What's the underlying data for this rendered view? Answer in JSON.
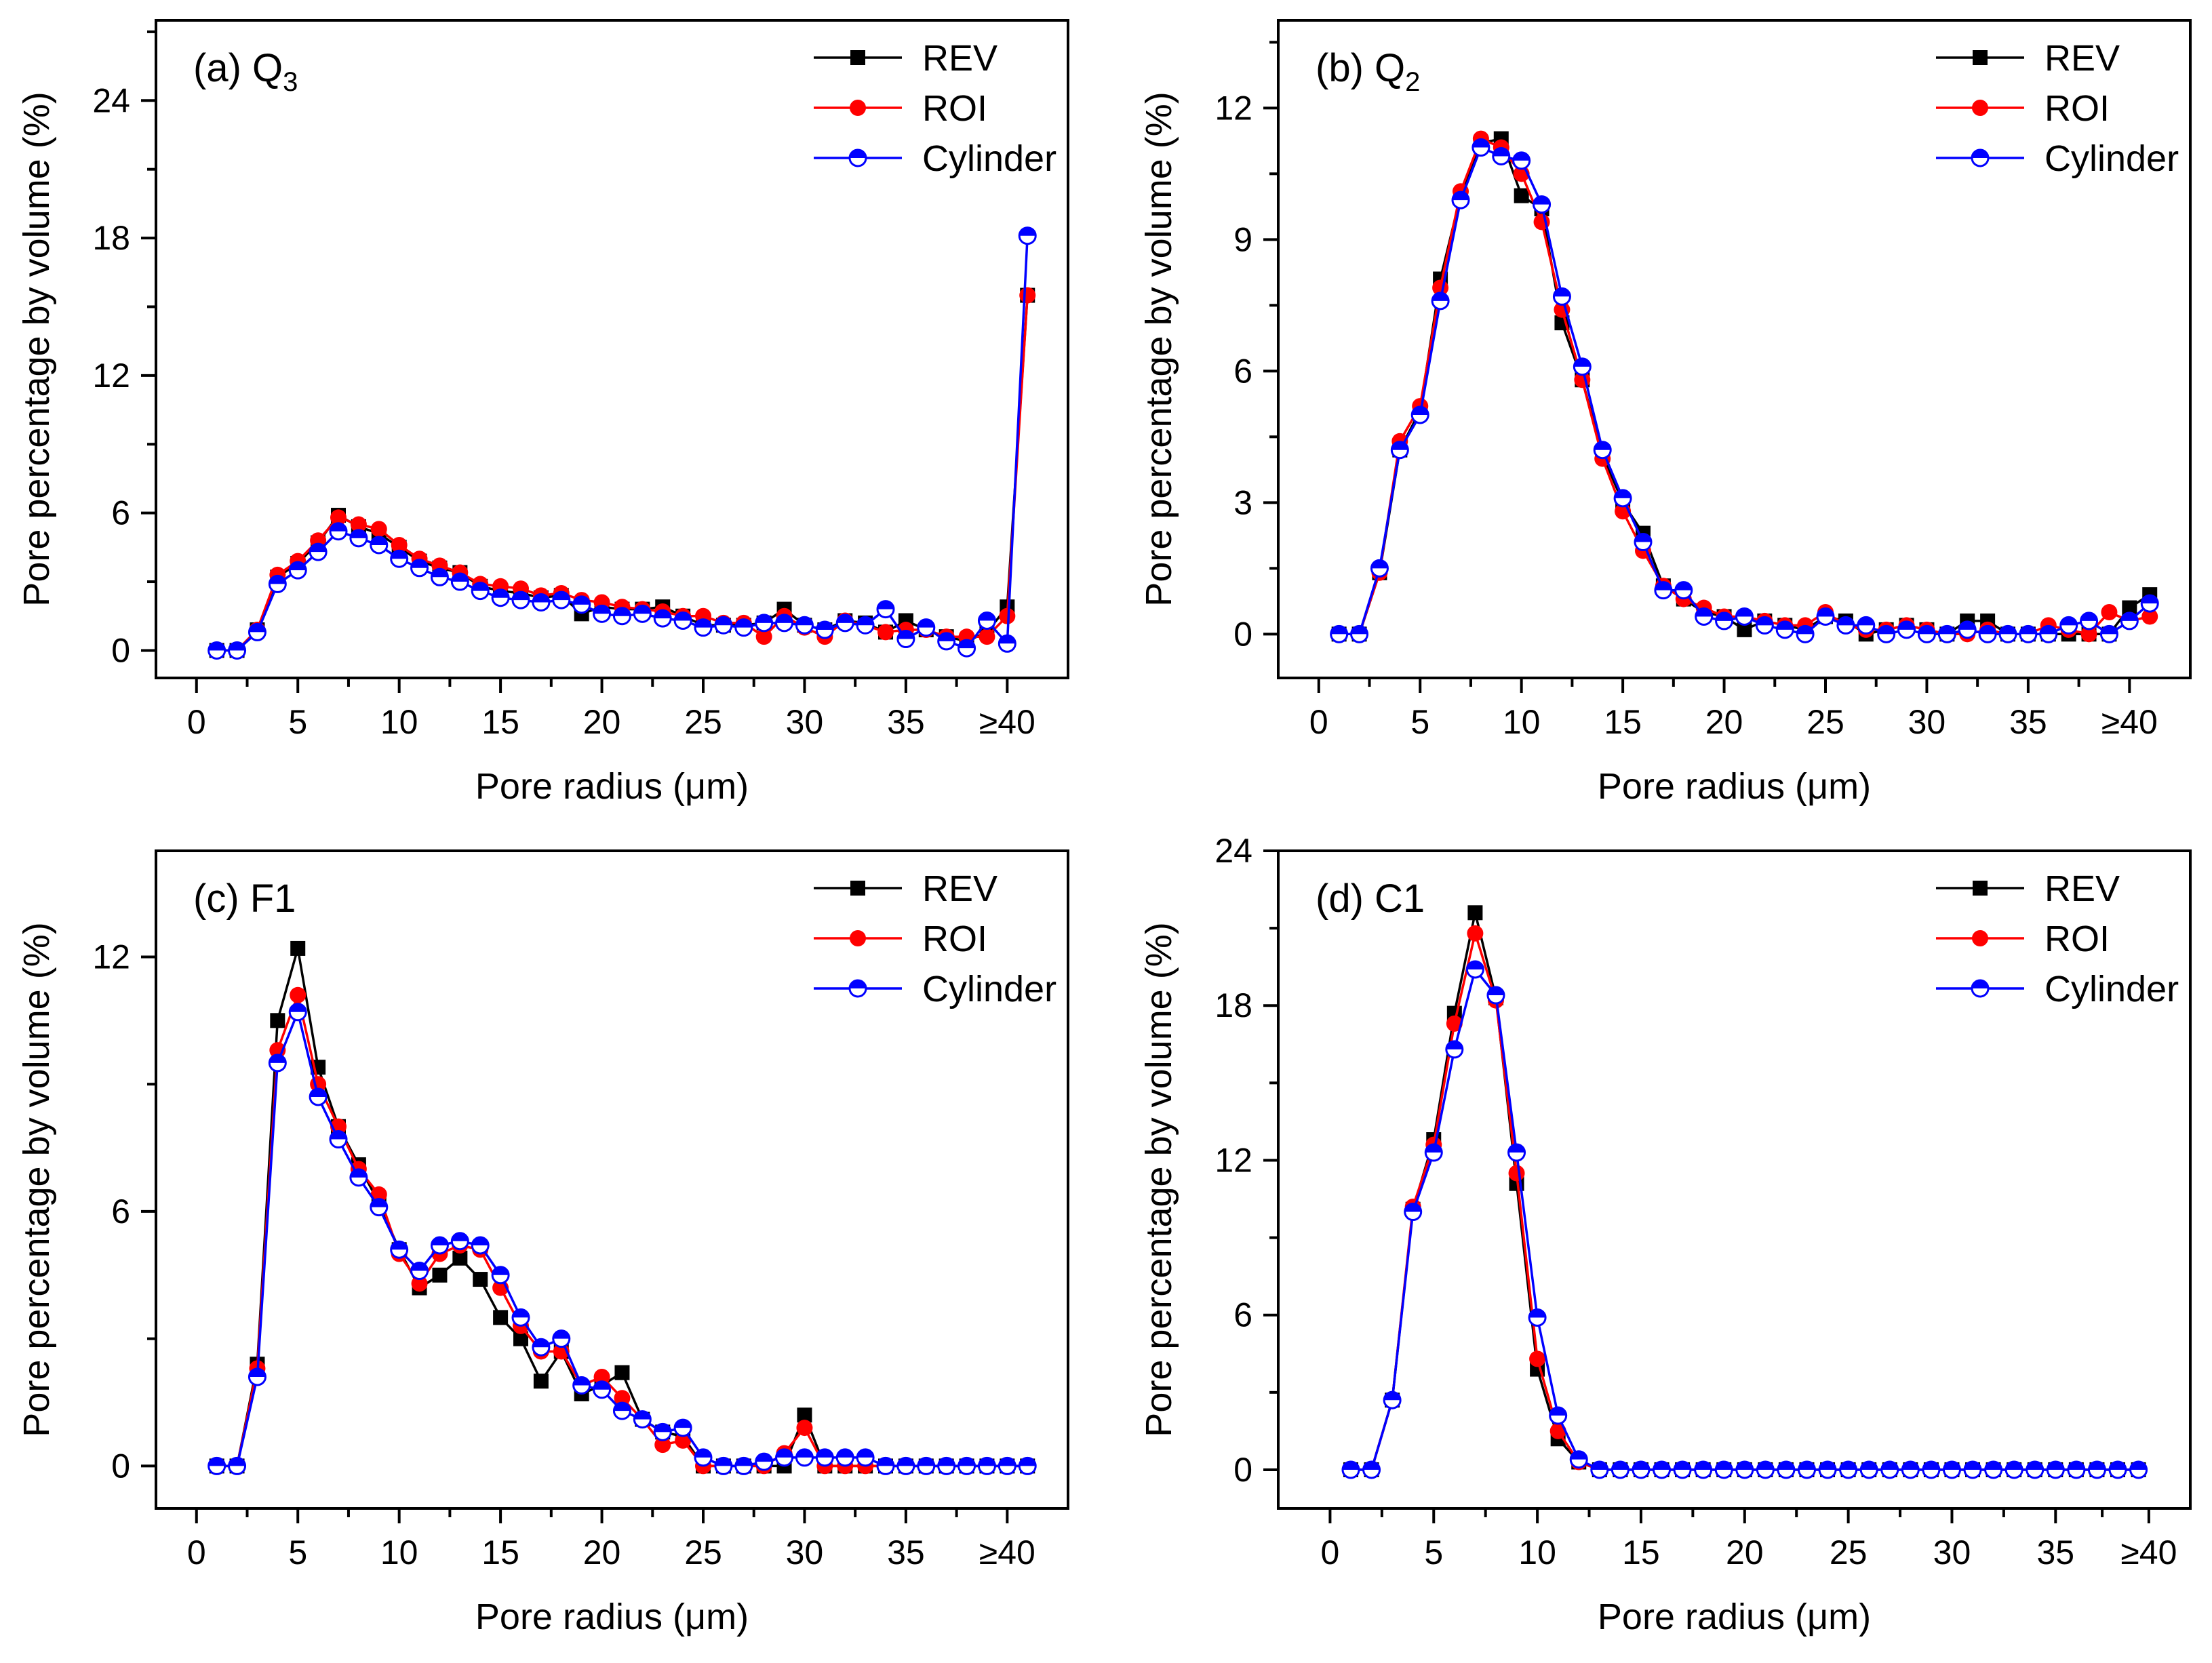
{
  "figure": {
    "colors": {
      "REV": "#000000",
      "ROI": "#ff0000",
      "Cylinder": "#0000ff"
    }
  },
  "chart_data": [
    {
      "type": "line",
      "panel_label": "(a) Q",
      "panel_label_sub": "3",
      "xlabel": "Pore radius (μm)",
      "ylabel": "Pore percentage by volume (%)",
      "xlim": [
        -2,
        43
      ],
      "ylim": [
        -1.2,
        27.5
      ],
      "x_ticks": [
        0,
        5,
        10,
        15,
        20,
        25,
        30,
        35,
        40
      ],
      "x_tick_labels": [
        "0",
        "5",
        "10",
        "15",
        "20",
        "25",
        "30",
        "35",
        "≥40"
      ],
      "y_ticks": [
        0,
        6,
        12,
        18,
        24
      ],
      "y_tick_labels": [
        "0",
        "6",
        "12",
        "18",
        "24"
      ],
      "legend_position": "top-right",
      "x": [
        1,
        2,
        3,
        4,
        5,
        6,
        7,
        8,
        9,
        10,
        11,
        12,
        13,
        14,
        15,
        16,
        17,
        18,
        19,
        20,
        21,
        22,
        23,
        24,
        25,
        26,
        27,
        28,
        29,
        30,
        31,
        32,
        33,
        34,
        35,
        36,
        37,
        38,
        39,
        40,
        41
      ],
      "series": [
        {
          "name": "REV",
          "marker": "square",
          "values": [
            0,
            0,
            0.9,
            3.2,
            3.8,
            4.7,
            5.9,
            5.4,
            5.1,
            4.5,
            3.9,
            3.6,
            3.4,
            2.8,
            2.6,
            2.5,
            2.3,
            2.4,
            1.6,
            1.9,
            1.8,
            1.8,
            1.9,
            1.5,
            1.1,
            1.1,
            1.1,
            1.2,
            1.8,
            1.1,
            0.9,
            1.3,
            1.2,
            0.8,
            1.3,
            0.9,
            0.6,
            0.4,
            0.8,
            1.9,
            15.5
          ]
        },
        {
          "name": "ROI",
          "marker": "circle",
          "values": [
            0,
            0,
            0.9,
            3.3,
            3.9,
            4.8,
            5.8,
            5.5,
            5.3,
            4.6,
            4.0,
            3.7,
            3.4,
            2.9,
            2.8,
            2.7,
            2.4,
            2.5,
            2.2,
            2.1,
            1.9,
            1.8,
            1.7,
            1.5,
            1.5,
            1.2,
            1.2,
            0.6,
            1.5,
            1.0,
            0.6,
            1.3,
            1.1,
            0.8,
            0.9,
            0.9,
            0.6,
            0.6,
            0.6,
            1.5,
            15.5
          ]
        },
        {
          "name": "Cylinder",
          "marker": "half-circle",
          "values": [
            0,
            0,
            0.8,
            2.9,
            3.5,
            4.3,
            5.2,
            4.9,
            4.6,
            4.0,
            3.6,
            3.2,
            3.0,
            2.6,
            2.3,
            2.2,
            2.1,
            2.2,
            2.0,
            1.6,
            1.5,
            1.6,
            1.4,
            1.3,
            1.0,
            1.1,
            1.0,
            1.2,
            1.2,
            1.1,
            0.9,
            1.2,
            1.1,
            1.8,
            0.5,
            1.0,
            0.4,
            0.1,
            1.3,
            0.3,
            18.1
          ]
        }
      ]
    },
    {
      "type": "line",
      "panel_label": "(b) Q",
      "panel_label_sub": "2",
      "xlabel": "Pore radius (μm)",
      "ylabel": "Pore percentage by volume (%)",
      "xlim": [
        -2,
        43
      ],
      "ylim": [
        -1.0,
        14.0
      ],
      "x_ticks": [
        0,
        5,
        10,
        15,
        20,
        25,
        30,
        35,
        40
      ],
      "x_tick_labels": [
        "0",
        "5",
        "10",
        "15",
        "20",
        "25",
        "30",
        "35",
        "≥40"
      ],
      "y_ticks": [
        0,
        3,
        6,
        9,
        12
      ],
      "y_tick_labels": [
        "0",
        "3",
        "6",
        "9",
        "12"
      ],
      "legend_position": "top-right",
      "x": [
        1,
        2,
        3,
        4,
        5,
        6,
        7,
        8,
        9,
        10,
        11,
        12,
        13,
        14,
        15,
        16,
        17,
        18,
        19,
        20,
        21,
        22,
        23,
        24,
        25,
        26,
        27,
        28,
        29,
        30,
        31,
        32,
        33,
        34,
        35,
        36,
        37,
        38,
        39,
        40,
        41
      ],
      "series": [
        {
          "name": "REV",
          "marker": "square",
          "values": [
            0,
            0,
            1.4,
            4.2,
            5.1,
            8.1,
            10.0,
            11.2,
            11.3,
            10.0,
            9.7,
            7.1,
            5.8,
            4.1,
            3.0,
            2.3,
            1.1,
            0.8,
            0.5,
            0.4,
            0.1,
            0.3,
            0.2,
            0.1,
            0.4,
            0.3,
            0.0,
            0.1,
            0.2,
            0.1,
            0.0,
            0.3,
            0.3,
            0.0,
            0.0,
            0.0,
            0.0,
            0.0,
            0.0,
            0.6,
            0.9
          ]
        },
        {
          "name": "ROI",
          "marker": "circle",
          "values": [
            0,
            0,
            1.4,
            4.4,
            5.2,
            7.9,
            10.1,
            11.3,
            11.1,
            10.5,
            9.4,
            7.4,
            5.8,
            4.0,
            2.8,
            1.9,
            1.1,
            0.8,
            0.6,
            0.4,
            0.4,
            0.3,
            0.2,
            0.2,
            0.5,
            0.2,
            0.1,
            0.1,
            0.2,
            0.1,
            0.0,
            0.0,
            0.1,
            0.0,
            0.0,
            0.2,
            0.1,
            0.0,
            0.5,
            0.3,
            0.4
          ]
        },
        {
          "name": "Cylinder",
          "marker": "half-circle",
          "values": [
            0,
            0,
            1.5,
            4.2,
            5.0,
            7.6,
            9.9,
            11.1,
            10.9,
            10.8,
            9.8,
            7.7,
            6.1,
            4.2,
            3.1,
            2.1,
            1.0,
            1.0,
            0.4,
            0.3,
            0.4,
            0.2,
            0.1,
            0.0,
            0.4,
            0.2,
            0.2,
            0.0,
            0.1,
            0.0,
            0.0,
            0.1,
            0.0,
            0.0,
            0.0,
            0.0,
            0.2,
            0.3,
            0.0,
            0.3,
            0.7
          ]
        }
      ]
    },
    {
      "type": "line",
      "panel_label": "(c) F1",
      "panel_label_sub": "",
      "xlabel": "Pore radius (μm)",
      "ylabel": "Pore percentage by volume (%)",
      "xlim": [
        -2,
        43
      ],
      "ylim": [
        -1.0,
        14.5
      ],
      "x_ticks": [
        0,
        5,
        10,
        15,
        20,
        25,
        30,
        35,
        40
      ],
      "x_tick_labels": [
        "0",
        "5",
        "10",
        "15",
        "20",
        "25",
        "30",
        "35",
        "≥40"
      ],
      "y_ticks": [
        0,
        6,
        12
      ],
      "y_tick_labels": [
        "0",
        "6",
        "12"
      ],
      "legend_position": "top-right",
      "x": [
        1,
        2,
        3,
        4,
        5,
        6,
        7,
        8,
        9,
        10,
        11,
        12,
        13,
        14,
        15,
        16,
        17,
        18,
        19,
        20,
        21,
        22,
        23,
        24,
        25,
        26,
        27,
        28,
        29,
        30,
        31,
        32,
        33,
        34,
        35,
        36,
        37,
        38,
        39,
        40,
        41
      ],
      "series": [
        {
          "name": "REV",
          "marker": "square",
          "values": [
            0,
            0,
            2.4,
            10.5,
            12.2,
            9.4,
            8.0,
            7.1,
            6.2,
            5.1,
            4.2,
            4.5,
            4.9,
            4.4,
            3.5,
            3.0,
            2.0,
            2.7,
            1.7,
            1.9,
            2.2,
            1.1,
            0.8,
            0.7,
            0.0,
            0.0,
            0.0,
            0.0,
            0.0,
            1.2,
            0.0,
            0.0,
            0.0,
            0.0,
            0.0,
            0.0,
            0.0,
            0.0,
            0.0,
            0.0,
            0.0
          ]
        },
        {
          "name": "ROI",
          "marker": "circle",
          "values": [
            0,
            0,
            2.3,
            9.8,
            11.1,
            9.0,
            8.0,
            7.0,
            6.4,
            5.0,
            4.3,
            5.0,
            5.2,
            5.1,
            4.2,
            3.3,
            2.7,
            2.7,
            1.9,
            2.1,
            1.6,
            1.1,
            0.5,
            0.6,
            0.0,
            0.0,
            0.0,
            0.0,
            0.3,
            0.9,
            0.0,
            0.0,
            0.0,
            0.0,
            0.0,
            0.0,
            0.0,
            0.0,
            0.0,
            0.0,
            0.0
          ]
        },
        {
          "name": "Cylinder",
          "marker": "half-circle",
          "values": [
            0,
            0,
            2.1,
            9.5,
            10.7,
            8.7,
            7.7,
            6.8,
            6.1,
            5.1,
            4.6,
            5.2,
            5.3,
            5.2,
            4.5,
            3.5,
            2.8,
            3.0,
            1.9,
            1.8,
            1.3,
            1.1,
            0.8,
            0.9,
            0.2,
            0.0,
            0.0,
            0.1,
            0.2,
            0.2,
            0.2,
            0.2,
            0.2,
            0.0,
            0.0,
            0.0,
            0.0,
            0.0,
            0.0,
            0.0,
            0.0
          ]
        }
      ]
    },
    {
      "type": "line",
      "panel_label": "(d) C1",
      "panel_label_sub": "",
      "xlabel": "Pore radius (μm)",
      "ylabel": "Pore percentage by volume (%)",
      "xlim": [
        -2.5,
        41.5
      ],
      "ylim": [
        -1.5,
        24.0
      ],
      "x_ticks": [
        0,
        5,
        10,
        15,
        20,
        25,
        30,
        35,
        39.5
      ],
      "x_tick_labels": [
        "0",
        "5",
        "10",
        "15",
        "20",
        "25",
        "30",
        "35",
        "≥40"
      ],
      "y_ticks": [
        0,
        6,
        12,
        18,
        24
      ],
      "y_tick_labels": [
        "0",
        "6",
        "12",
        "18",
        "24"
      ],
      "legend_position": "top-right",
      "x": [
        1,
        2,
        3,
        4,
        5,
        6,
        7,
        8,
        9,
        10,
        11,
        12,
        13,
        14,
        15,
        16,
        17,
        18,
        19,
        20,
        21,
        22,
        23,
        24,
        25,
        26,
        27,
        28,
        29,
        30,
        31,
        32,
        33,
        34,
        35,
        36,
        37,
        38,
        39
      ],
      "series": [
        {
          "name": "REV",
          "marker": "square",
          "values": [
            0,
            0,
            2.7,
            10.1,
            12.8,
            17.7,
            21.6,
            18.3,
            11.1,
            3.9,
            1.2,
            0.3,
            0,
            0,
            0,
            0,
            0,
            0,
            0,
            0,
            0,
            0,
            0,
            0,
            0,
            0,
            0,
            0,
            0,
            0,
            0,
            0,
            0,
            0,
            0,
            0,
            0,
            0,
            0
          ]
        },
        {
          "name": "ROI",
          "marker": "circle",
          "values": [
            0,
            0,
            2.7,
            10.2,
            12.6,
            17.3,
            20.8,
            18.2,
            11.5,
            4.3,
            1.5,
            0.3,
            0,
            0,
            0,
            0,
            0,
            0,
            0,
            0,
            0,
            0,
            0,
            0,
            0,
            0,
            0,
            0,
            0,
            0,
            0,
            0,
            0,
            0,
            0,
            0,
            0,
            0,
            0
          ]
        },
        {
          "name": "Cylinder",
          "marker": "half-circle",
          "values": [
            0,
            0,
            2.7,
            10.0,
            12.3,
            16.3,
            19.4,
            18.4,
            12.3,
            5.9,
            2.1,
            0.4,
            0,
            0,
            0,
            0,
            0,
            0,
            0,
            0,
            0,
            0,
            0,
            0,
            0,
            0,
            0,
            0,
            0,
            0,
            0,
            0,
            0,
            0,
            0,
            0,
            0,
            0,
            0
          ]
        }
      ]
    }
  ]
}
